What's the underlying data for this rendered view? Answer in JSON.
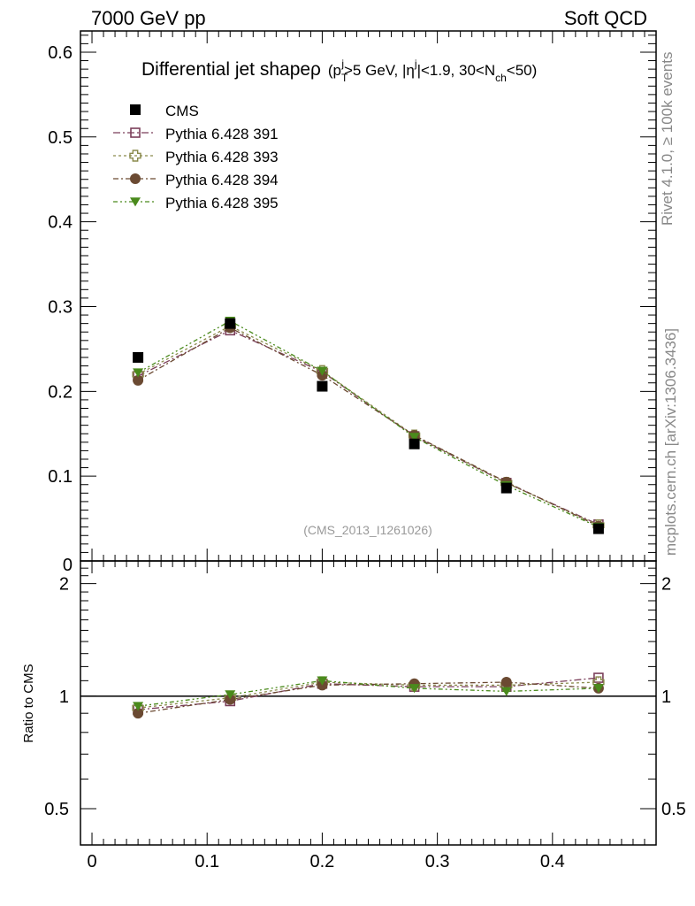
{
  "header": {
    "left": "7000 GeV pp",
    "right": "Soft QCD"
  },
  "side_labels": {
    "rivet": "Rivet 4.1.0, ≥ 100k events",
    "mcplots": "mcplots.cern.ch [arXiv:1306.3436]"
  },
  "chart_data": {
    "type": "scatter",
    "title": "Differential jet shape ρ (p_T^j > 5 GeV, |η^j| < 1.9, 30 < N_ch < 50)",
    "title_parts": {
      "main": "Differential jet shapeρ",
      "p": "(p",
      "pt_sub": "T",
      "pt_sup": "j",
      "gev": ">5 GeV, |η",
      "eta_sup": "j",
      "eta_rest": "|<1.9, 30<N",
      "nch_sub": "ch",
      "end": "<50)"
    },
    "analysis_label": "(CMS_2013_I1261026)",
    "x": [
      0.04,
      0.12,
      0.2,
      0.28,
      0.36,
      0.44
    ],
    "xlim": [
      -0.01,
      0.49
    ],
    "xticks": [
      "0",
      "0.1",
      "0.2",
      "0.3",
      "0.4"
    ],
    "xtick_values": [
      0,
      0.1,
      0.2,
      0.3,
      0.4
    ],
    "main_panel": {
      "ylim": [
        0,
        0.625
      ],
      "yticks": [
        "0.1",
        "0.2",
        "0.3",
        "0.4",
        "0.5",
        "0.6"
      ],
      "ytick_values": [
        0.1,
        0.2,
        0.3,
        0.4,
        0.5,
        0.6
      ],
      "ytick_zero": "0"
    },
    "ratio_panel": {
      "ylabel": "Ratio to CMS",
      "ylim": [
        0.4,
        2.3
      ],
      "yticks": [
        "0.5",
        "1",
        "2"
      ],
      "ytick_values": [
        0.5,
        1,
        2
      ],
      "reference": 1
    },
    "series": [
      {
        "name": "CMS",
        "color": "#000000",
        "marker": "filled-square",
        "values": [
          0.24,
          0.28,
          0.206,
          0.138,
          0.086,
          0.038
        ],
        "ratio": [
          1,
          1,
          1,
          1,
          1,
          1
        ]
      },
      {
        "name": "Pythia 6.428 391",
        "color": "#7b3f5a",
        "marker": "open-square",
        "values": [
          0.218,
          0.272,
          0.223,
          0.147,
          0.092,
          0.043
        ],
        "ratio": [
          0.92,
          0.97,
          1.08,
          1.06,
          1.06,
          1.12
        ]
      },
      {
        "name": "Pythia 6.428 393",
        "color": "#8a8a4c",
        "marker": "open-cross",
        "values": [
          0.22,
          0.277,
          0.224,
          0.148,
          0.092,
          0.042
        ],
        "ratio": [
          0.93,
          0.99,
          1.09,
          1.07,
          1.07,
          1.09
        ]
      },
      {
        "name": "Pythia 6.428 394",
        "color": "#6b4a32",
        "marker": "filled-circle",
        "values": [
          0.213,
          0.275,
          0.219,
          0.148,
          0.093,
          0.041
        ],
        "ratio": [
          0.9,
          0.98,
          1.07,
          1.08,
          1.09,
          1.05
        ]
      },
      {
        "name": "Pythia 6.428 395",
        "color": "#4a8a1c",
        "marker": "filled-triangle-down",
        "values": [
          0.222,
          0.283,
          0.224,
          0.146,
          0.089,
          0.04
        ],
        "ratio": [
          0.94,
          1.01,
          1.1,
          1.05,
          1.03,
          1.05
        ]
      }
    ]
  }
}
